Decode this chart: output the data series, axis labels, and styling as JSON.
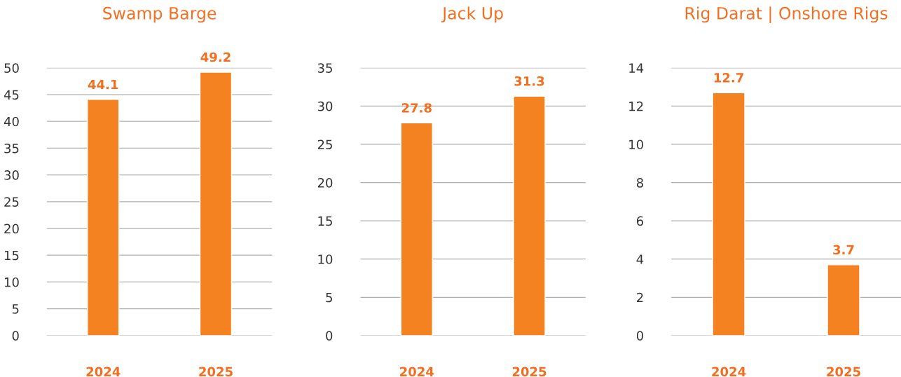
{
  "chart_data": [
    {
      "type": "bar",
      "title": "Swamp Barge",
      "categories": [
        "2024",
        "2025"
      ],
      "values": [
        44.1,
        49.2
      ],
      "color": "#f58220",
      "ylim": [
        0,
        50
      ],
      "yticks": [
        0,
        5,
        10,
        15,
        20,
        25,
        30,
        35,
        40,
        45,
        50
      ],
      "grid": "y",
      "data_labels": true
    },
    {
      "type": "bar",
      "title": "Jack Up",
      "categories": [
        "2024",
        "2025"
      ],
      "values": [
        27.8,
        31.3
      ],
      "color": "#f58220",
      "ylim": [
        0,
        35
      ],
      "yticks": [
        0,
        5,
        10,
        15,
        20,
        25,
        30,
        35
      ],
      "grid": "y",
      "data_labels": true
    },
    {
      "type": "bar",
      "title": "Rig Darat | Onshore Rigs",
      "categories": [
        "2024",
        "2025"
      ],
      "values": [
        12.7,
        3.7
      ],
      "color": "#f58220",
      "ylim": [
        0,
        14
      ],
      "yticks": [
        0,
        2,
        4,
        6,
        8,
        10,
        12,
        14
      ],
      "grid": "y",
      "data_labels": true
    }
  ]
}
